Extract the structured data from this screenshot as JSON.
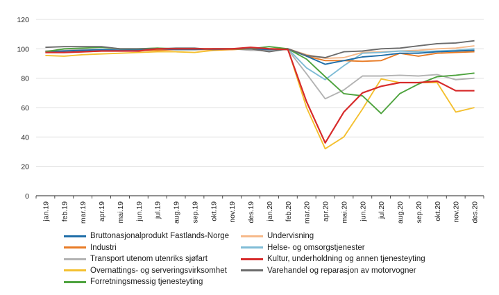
{
  "chart_data": {
    "type": "line",
    "x": [
      "jan.19",
      "feb.19",
      "mar.19",
      "apr.19",
      "mai.19",
      "jun.19",
      "jul.19",
      "aug.19",
      "sep.19",
      "okt.19",
      "nov.19",
      "des.19",
      "jan.20",
      "feb.20",
      "mar.20",
      "apr.20",
      "mai.20",
      "jun.20",
      "jul.20",
      "aug.20",
      "sep.20",
      "okt.20",
      "nov.20",
      "des.20"
    ],
    "ylim": [
      0,
      120
    ],
    "yticks": [
      0,
      20,
      40,
      60,
      80,
      100,
      120
    ],
    "grid": "horizontal",
    "legend_position": "bottom",
    "series": [
      {
        "name": "Bruttonasjonalprodukt Fastlands-Norge",
        "color": "#1f6ea8",
        "values": [
          98,
          98.5,
          99,
          99.5,
          99,
          99.5,
          100,
          99.5,
          99.5,
          100,
          100,
          100,
          99.5,
          100,
          95,
          89.5,
          92,
          94.5,
          95.5,
          97,
          97,
          98,
          98.5,
          99
        ]
      },
      {
        "name": "Industri",
        "color": "#e87b25",
        "values": [
          97.5,
          97.5,
          98,
          98.5,
          98.5,
          99,
          99,
          99.5,
          99.5,
          99.5,
          99.5,
          100,
          100,
          100,
          95,
          92,
          92,
          91.5,
          92,
          97,
          95,
          97,
          97.5,
          98
        ]
      },
      {
        "name": "Transport utenom utenriks sjøfart",
        "color": "#b3b3b3",
        "values": [
          98.5,
          99,
          99.5,
          99.5,
          99.5,
          100,
          100.5,
          100,
          100,
          100,
          100,
          99,
          99,
          99.5,
          83,
          66,
          72,
          81.5,
          81.5,
          82,
          81.5,
          82.5,
          79,
          80
        ]
      },
      {
        "name": "Overnattings- og serveringsvirksomhet",
        "color": "#f4c030",
        "values": [
          95.5,
          95,
          96,
          96.5,
          97,
          97.5,
          98,
          98,
          97.5,
          99,
          99.5,
          100,
          100,
          100,
          60,
          32,
          40,
          59,
          79.5,
          77,
          77,
          77,
          57,
          60
        ]
      },
      {
        "name": "Forretningsmessig tjenesteyting",
        "color": "#4ea33e",
        "values": [
          98,
          100,
          100.5,
          101,
          100,
          100,
          100.5,
          100,
          100,
          100,
          100,
          100,
          101.5,
          100,
          93,
          81,
          69.5,
          68,
          56,
          69.5,
          76,
          81,
          82,
          83.5
        ]
      },
      {
        "name": "Undervisning",
        "color": "#f6b98a",
        "values": [
          98,
          98.5,
          99,
          99.5,
          99.5,
          99.5,
          100,
          99.5,
          100,
          100,
          100,
          100,
          100,
          100,
          96,
          93.5,
          94,
          97.5,
          98,
          98.5,
          99,
          100,
          100.5,
          102
        ]
      },
      {
        "name": "Helse- og omsorgstjenester",
        "color": "#7fbcd6",
        "values": [
          98.5,
          99,
          99,
          99,
          99,
          99.5,
          100,
          99.5,
          99.5,
          100,
          100,
          100,
          100,
          100,
          87,
          79,
          88.5,
          97,
          97.5,
          98.5,
          98,
          98.5,
          99,
          100
        ]
      },
      {
        "name": "Kultur, underholdning og annen tjenesteyting",
        "color": "#d72b2b",
        "values": [
          97.5,
          97.5,
          98,
          98.5,
          98.5,
          98.5,
          100,
          100,
          100,
          100,
          100,
          101,
          100,
          99.5,
          64,
          36,
          57,
          70,
          74.5,
          77,
          77,
          78,
          71.5,
          71.5
        ]
      },
      {
        "name": "Varehandel og reparasjon av motorvogner",
        "color": "#6b6b6b",
        "values": [
          101,
          101.5,
          101.5,
          101.5,
          100,
          100,
          100,
          100.5,
          100.5,
          99.5,
          100,
          100,
          98,
          100,
          95.5,
          94,
          98,
          98.5,
          100,
          100.5,
          102,
          103.5,
          104,
          105.5
        ]
      }
    ]
  }
}
